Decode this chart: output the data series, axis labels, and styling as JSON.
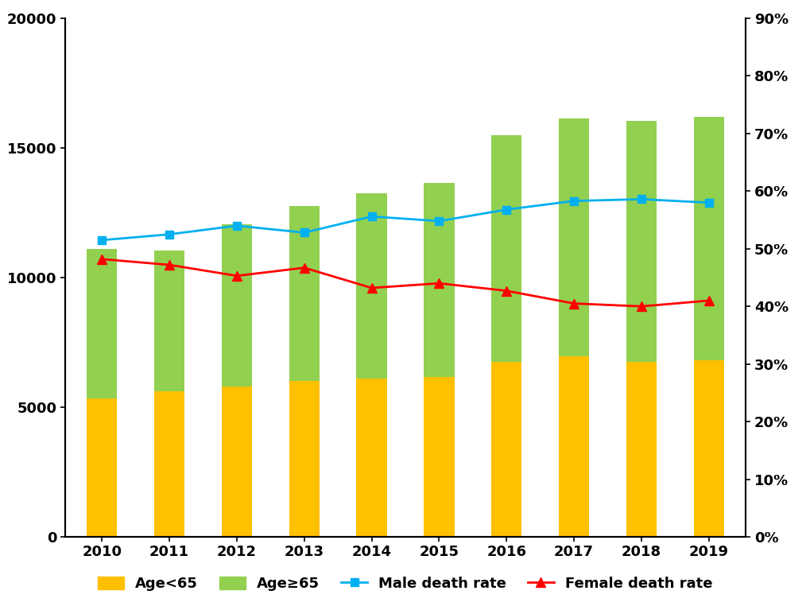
{
  "years": [
    2010,
    2011,
    2012,
    2013,
    2014,
    2015,
    2016,
    2017,
    2018,
    2019
  ],
  "age_under65": [
    5350,
    5600,
    5800,
    6000,
    6100,
    6150,
    6750,
    6950,
    6750,
    6800
  ],
  "age_over65": [
    5750,
    5450,
    6250,
    6750,
    7150,
    7500,
    8750,
    9200,
    9300,
    9400
  ],
  "male_death_rate": [
    0.515,
    0.525,
    0.54,
    0.528,
    0.556,
    0.548,
    0.568,
    0.583,
    0.586,
    0.58
  ],
  "female_death_rate": [
    0.482,
    0.472,
    0.453,
    0.467,
    0.432,
    0.44,
    0.427,
    0.405,
    0.4,
    0.41
  ],
  "bar_color_under65": "#FFC000",
  "bar_color_over65": "#92D050",
  "line_color_male": "#00B0F0",
  "line_color_female": "#FF0000",
  "ylim_left": [
    0,
    20000
  ],
  "ylim_right": [
    0,
    0.9
  ],
  "yticks_left": [
    0,
    5000,
    10000,
    15000,
    20000
  ],
  "yticks_right_vals": [
    0.0,
    0.1,
    0.2,
    0.3,
    0.4,
    0.5,
    0.6,
    0.7,
    0.8,
    0.9
  ],
  "yticks_right_labels": [
    "0%",
    "10%",
    "20%",
    "30%",
    "40%",
    "50%",
    "60%",
    "70%",
    "80%",
    "90%"
  ],
  "bar_width": 0.45,
  "legend_labels": [
    "Age<65",
    "Age≥65",
    "Male death rate",
    "Female death rate"
  ],
  "background_color": "#ffffff",
  "spine_color": "#000000",
  "tick_fontsize": 13,
  "legend_fontsize": 13
}
